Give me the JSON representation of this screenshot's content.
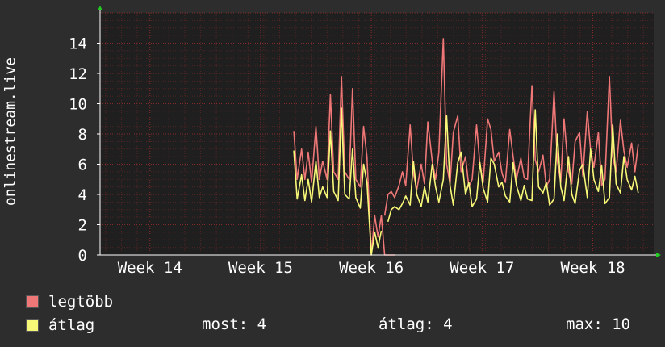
{
  "colors": {
    "background": "#2d2d2d",
    "plot_background": "#1f1f1f",
    "grid": "#8a2b2b",
    "axis": "#ffffff",
    "arrow": "#22cc22"
  },
  "legend": {
    "max_label": "legtöbb",
    "avg_label": "átlag",
    "max_color": "#f07777",
    "avg_color": "#f8f878"
  },
  "stats": {
    "now": "most: 4",
    "avg": "átlag: 4",
    "max": "max: 10"
  },
  "chart_data": {
    "type": "line",
    "ylabel": "onlinestream.live",
    "ylim": [
      0,
      16
    ],
    "yticks": [
      0,
      2,
      4,
      6,
      8,
      10,
      12,
      14
    ],
    "xlim": [
      13.55,
      18.55
    ],
    "xticks": [
      {
        "label": "Week 14",
        "value": 14
      },
      {
        "label": "Week 15",
        "value": 15
      },
      {
        "label": "Week 16",
        "value": 16
      },
      {
        "label": "Week 17",
        "value": 17
      },
      {
        "label": "Week 18",
        "value": 18
      }
    ],
    "grid": true,
    "series": [
      {
        "name": "legtöbb",
        "color": "#f07777",
        "segments": [
          {
            "x": [
              15.3,
              15.33,
              15.37,
              15.4,
              15.43,
              15.46,
              15.5,
              15.53,
              15.56,
              15.6,
              15.63,
              15.66,
              15.7,
              15.73,
              15.76,
              15.8,
              15.83,
              15.86,
              15.9,
              15.93,
              15.96,
              16.0,
              16.03,
              16.06,
              16.09,
              16.12,
              16.15,
              16.18,
              16.21
            ],
            "y": [
              8.2,
              5.0,
              7.0,
              5.0,
              6.8,
              4.8,
              8.5,
              5.0,
              6.2,
              5.0,
              10.6,
              5.5,
              5.0,
              11.8,
              5.5,
              5.0,
              11.0,
              5.0,
              4.5,
              8.5,
              6.5,
              0.0,
              2.6,
              1.2,
              2.6,
              0,
              0,
              0,
              0
            ]
          },
          {
            "x": [
              16.12,
              16.15,
              16.18,
              16.21,
              16.25,
              16.28,
              16.31,
              16.35,
              16.38,
              16.41,
              16.45,
              16.48,
              16.51,
              16.55,
              16.58,
              16.61,
              16.65,
              16.68,
              16.71,
              16.74,
              16.78,
              16.81,
              16.85,
              16.88,
              16.91,
              16.95,
              16.98,
              17.01,
              17.05,
              17.08,
              17.11,
              17.15,
              17.18,
              17.21,
              17.25,
              17.28,
              17.31,
              17.35,
              17.38,
              17.41,
              17.45,
              17.48,
              17.51,
              17.55,
              17.58,
              17.61,
              17.65,
              17.68,
              17.71,
              17.74,
              17.78,
              17.81,
              17.84,
              17.88,
              17.91,
              17.95,
              17.98,
              18.01,
              18.05,
              18.08,
              18.11,
              18.15,
              18.18,
              18.21,
              18.25,
              18.28,
              18.31,
              18.35,
              18.38,
              18.41
            ],
            "y": [
              2.6,
              4.0,
              4.2,
              3.8,
              4.6,
              5.5,
              4.6,
              8.6,
              5.4,
              4.3,
              6.0,
              4.7,
              8.8,
              6.2,
              5.0,
              6.8,
              14.3,
              6.0,
              4.7,
              8.1,
              9.2,
              5.5,
              6.5,
              4.5,
              5.0,
              8.6,
              6.0,
              4.8,
              9.0,
              8.3,
              6.2,
              6.8,
              5.4,
              4.8,
              8.3,
              6.5,
              5.0,
              6.4,
              5.1,
              5.0,
              11.2,
              6.3,
              5.5,
              6.6,
              4.5,
              5.0,
              10.8,
              6.2,
              4.8,
              9.0,
              5.5,
              4.7,
              7.5,
              8.1,
              5.2,
              9.5,
              6.9,
              5.8,
              8.1,
              4.6,
              5.0,
              11.8,
              6.5,
              5.5,
              8.9,
              6.9,
              5.8,
              7.4,
              5.5,
              7.3
            ]
          }
        ]
      },
      {
        "name": "átlag",
        "color": "#f8f878",
        "segments": [
          {
            "x": [
              15.3,
              15.33,
              15.37,
              15.4,
              15.43,
              15.46,
              15.5,
              15.53,
              15.56,
              15.6,
              15.63,
              15.66,
              15.7,
              15.73,
              15.76,
              15.8,
              15.83,
              15.86,
              15.9,
              15.93,
              15.96,
              16.0,
              16.03,
              16.06,
              16.09
            ],
            "y": [
              6.9,
              3.7,
              5.3,
              3.6,
              5.0,
              3.5,
              6.2,
              3.8,
              4.5,
              3.8,
              8.2,
              4.2,
              3.6,
              9.7,
              4.0,
              3.7,
              7.0,
              3.8,
              3.1,
              6.0,
              4.8,
              0.0,
              1.5,
              0.5,
              1.6
            ]
          },
          {
            "x": [
              16.15,
              16.18,
              16.21,
              16.25,
              16.28,
              16.31,
              16.35,
              16.38,
              16.41,
              16.45,
              16.48,
              16.51,
              16.55,
              16.58,
              16.61,
              16.65,
              16.68,
              16.71,
              16.74,
              16.78,
              16.81,
              16.85,
              16.88,
              16.91,
              16.95,
              16.98,
              17.01,
              17.05,
              17.08,
              17.11,
              17.15,
              17.18,
              17.21,
              17.25,
              17.28,
              17.31,
              17.35,
              17.38,
              17.41,
              17.45,
              17.48,
              17.51,
              17.55,
              17.58,
              17.61,
              17.65,
              17.68,
              17.71,
              17.74,
              17.78,
              17.81,
              17.84,
              17.88,
              17.91,
              17.95,
              17.98,
              18.01,
              18.05,
              18.08,
              18.11,
              18.15,
              18.18,
              18.21,
              18.25,
              18.28,
              18.31,
              18.35,
              18.38,
              18.41
            ],
            "y": [
              2.2,
              3.0,
              3.2,
              3.0,
              3.4,
              3.9,
              3.3,
              6.2,
              4.0,
              3.2,
              4.5,
              3.5,
              6.0,
              4.5,
              3.5,
              5.0,
              9.2,
              4.6,
              3.3,
              6.1,
              6.8,
              4.0,
              4.8,
              3.2,
              3.7,
              6.1,
              4.4,
              3.5,
              6.4,
              6.0,
              4.5,
              4.8,
              3.9,
              3.5,
              6.1,
              4.6,
              3.6,
              4.6,
              3.7,
              3.6,
              9.6,
              4.5,
              4.1,
              4.8,
              3.3,
              3.7,
              8.0,
              4.5,
              3.6,
              6.5,
              4.0,
              3.4,
              5.6,
              6.0,
              3.8,
              7.0,
              5.0,
              4.2,
              5.9,
              3.4,
              3.8,
              8.6,
              4.7,
              4.1,
              6.5,
              5.0,
              4.3,
              5.2,
              4.1
            ]
          }
        ]
      }
    ]
  }
}
